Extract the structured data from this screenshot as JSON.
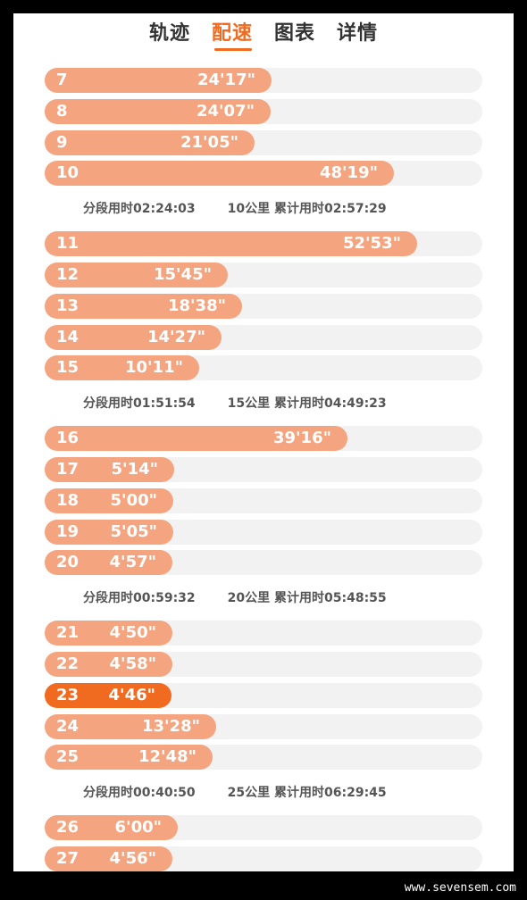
{
  "tabs": [
    {
      "label": "轨迹",
      "active": false
    },
    {
      "label": "配速",
      "active": true
    },
    {
      "label": "图表",
      "active": false
    },
    {
      "label": "详情",
      "active": false
    }
  ],
  "colors": {
    "accent": "#f06a1f",
    "bar": "#f4a47f",
    "track": "#f2f2f2"
  },
  "pace_max_seconds": 3780,
  "groups": [
    {
      "rows": [
        {
          "km": "7",
          "pace": "24'17\"",
          "seconds": 1457
        },
        {
          "km": "8",
          "pace": "24'07\"",
          "seconds": 1447
        },
        {
          "km": "9",
          "pace": "21'05\"",
          "seconds": 1265
        },
        {
          "km": "10",
          "pace": "48'19\"",
          "seconds": 2899
        }
      ],
      "summary": {
        "split": "分段用时02:24:03",
        "total": "10公里 累计用时02:57:29"
      }
    },
    {
      "rows": [
        {
          "km": "11",
          "pace": "52'53\"",
          "seconds": 3173
        },
        {
          "km": "12",
          "pace": "15'45\"",
          "seconds": 945
        },
        {
          "km": "13",
          "pace": "18'38\"",
          "seconds": 1118
        },
        {
          "km": "14",
          "pace": "14'27\"",
          "seconds": 867
        },
        {
          "km": "15",
          "pace": "10'11\"",
          "seconds": 611
        }
      ],
      "summary": {
        "split": "分段用时01:51:54",
        "total": "15公里 累计用时04:49:23"
      }
    },
    {
      "rows": [
        {
          "km": "16",
          "pace": "39'16\"",
          "seconds": 2356
        },
        {
          "km": "17",
          "pace": "5'14\"",
          "seconds": 314
        },
        {
          "km": "18",
          "pace": "5'00\"",
          "seconds": 300
        },
        {
          "km": "19",
          "pace": "5'05\"",
          "seconds": 305
        },
        {
          "km": "20",
          "pace": "4'57\"",
          "seconds": 297
        }
      ],
      "summary": {
        "split": "分段用时00:59:32",
        "total": "20公里 累计用时05:48:55"
      }
    },
    {
      "rows": [
        {
          "km": "21",
          "pace": "4'50\"",
          "seconds": 290
        },
        {
          "km": "22",
          "pace": "4'58\"",
          "seconds": 298
        },
        {
          "km": "23",
          "pace": "4'46\"",
          "seconds": 286,
          "highlight": true
        },
        {
          "km": "24",
          "pace": "13'28\"",
          "seconds": 808
        },
        {
          "km": "25",
          "pace": "12'48\"",
          "seconds": 768
        }
      ],
      "summary": {
        "split": "分段用时00:40:50",
        "total": "25公里 累计用时06:29:45"
      }
    },
    {
      "rows": [
        {
          "km": "26",
          "pace": "6'00\"",
          "seconds": 360
        },
        {
          "km": "27",
          "pace": "4'56\"",
          "seconds": 296
        }
      ]
    }
  ],
  "watermark": "www.sevensem.com"
}
